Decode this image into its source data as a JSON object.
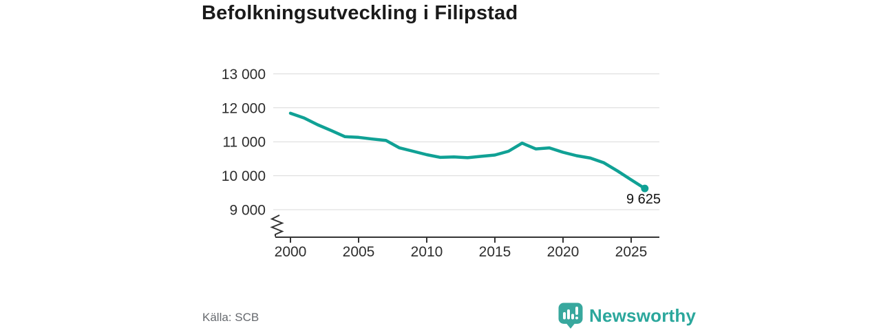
{
  "header": {
    "title": "Befolkningsutveckling i Filipstad"
  },
  "footer": {
    "source": "Källa: SCB",
    "brand": "Newsworthy"
  },
  "colors": {
    "line": "#10a195",
    "grid": "#d9d9d9",
    "axis": "#333333",
    "tick_text": "#2d2d2d",
    "brand_teal": "#2ba79c",
    "logo_fill": "#38a89e"
  },
  "chart_data": {
    "type": "line",
    "title": "Befolkningsutveckling i Filipstad",
    "xlabel": "",
    "ylabel": "",
    "x": [
      2000,
      2001,
      2002,
      2003,
      2004,
      2005,
      2006,
      2007,
      2008,
      2009,
      2010,
      2011,
      2012,
      2013,
      2014,
      2015,
      2016,
      2017,
      2018,
      2019,
      2020,
      2021,
      2022,
      2023,
      2024,
      2025,
      2026
    ],
    "series": [
      {
        "color": "#10a195",
        "values": [
          11840,
          11700,
          11500,
          11330,
          11150,
          11130,
          11080,
          11040,
          10820,
          10720,
          10620,
          10540,
          10555,
          10530,
          10570,
          10610,
          10720,
          10960,
          10790,
          10820,
          10690,
          10590,
          10520,
          10380,
          10140,
          9880,
          9625
        ]
      }
    ],
    "x_ticks": [
      {
        "value": 2000,
        "label": "2000"
      },
      {
        "value": 2005,
        "label": "2005"
      },
      {
        "value": 2010,
        "label": "2010"
      },
      {
        "value": 2015,
        "label": "2015"
      },
      {
        "value": 2020,
        "label": "2020"
      },
      {
        "value": 2025,
        "label": "2025"
      }
    ],
    "y_ticks": [
      {
        "value": 9000,
        "label": "9 000"
      },
      {
        "value": 10000,
        "label": "10 000"
      },
      {
        "value": 11000,
        "label": "11 000"
      },
      {
        "value": 12000,
        "label": "12 000"
      },
      {
        "value": 13000,
        "label": "13 000"
      }
    ],
    "ylim": [
      9000,
      13000
    ],
    "axis_break": true,
    "grid": "horizontal",
    "legend": "none",
    "end_label": "9 625",
    "last_value": 9625,
    "source": "Källa: SCB"
  }
}
